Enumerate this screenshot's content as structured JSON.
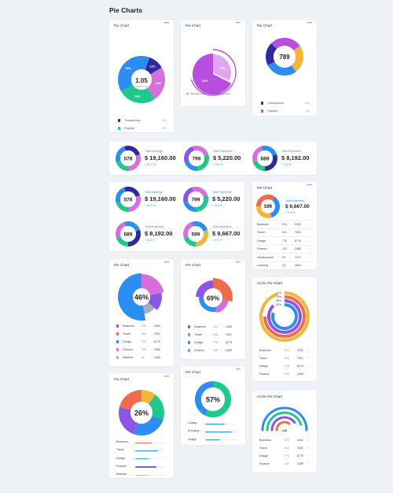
{
  "page_title": "Pie Charts",
  "card_title": "Pie Chart",
  "circle_card_title": "Circle Pie Chart",
  "colors": {
    "navy": "#2f2a9e",
    "green": "#1ec98b",
    "pink": "#d76ee0",
    "blue": "#2b8ef0",
    "purple": "#8b55e6",
    "orange": "#f5b53a",
    "red": "#f06a4c",
    "gray": "#a3adbb"
  },
  "card1": {
    "center_value": "1.05",
    "center_sub": "average range",
    "slices": [
      {
        "label": "11%",
        "value": 11,
        "color": "#2f2a9e"
      },
      {
        "label": "24%",
        "value": 24,
        "color": "#d76ee0"
      },
      {
        "label": "26%",
        "value": 26,
        "color": "#1ec98b"
      },
      {
        "label": "39%",
        "value": 39,
        "color": "#2b8ef0"
      }
    ],
    "legend": [
      {
        "name": "Transactions",
        "value": "400",
        "color": "#2f2a9e"
      },
      {
        "name": "Payouts",
        "value": "180",
        "color": "#1ec98b"
      },
      {
        "name": "Sales",
        "value": "240",
        "color": "#d76ee0"
      },
      {
        "name": "Reports",
        "value": "596",
        "color": "#2b8ef0"
      }
    ]
  },
  "card2": {
    "slices": [
      {
        "label": "82%",
        "value": 82,
        "color": "#b84ee0"
      },
      {
        "label": "18%",
        "value": 18,
        "color": "#e3a4f2"
      }
    ],
    "legend": [
      {
        "name": "Total Expenses",
        "color": "#d76ee0"
      },
      {
        "name": "Remaining Sales",
        "color": "#b84ee0"
      }
    ]
  },
  "card3": {
    "center_value": "789",
    "legend": [
      {
        "name": "Transactions",
        "value": "400",
        "color": "#2f2a9e"
      },
      {
        "name": "Payouts",
        "value": "780",
        "color": "#b84ee0"
      },
      {
        "name": "Sales",
        "value": "240",
        "color": "#f5b53a"
      },
      {
        "name": "Reports",
        "value": "596",
        "color": "#2b8ef0"
      }
    ]
  },
  "stats": [
    {
      "center": "578",
      "label": "Total Earnings",
      "amount": "$ 19,160.00",
      "change": "+ 16.24 %"
    },
    {
      "center": "799",
      "label": "Total Payments",
      "amount": "$ 5,220.00",
      "change": "+ 6.64 %"
    },
    {
      "center": "689",
      "label": "Total Expenses",
      "amount": "$ 8,192.00",
      "change": "+ 5.12 %"
    },
    {
      "center": "599",
      "label": "Total Expenses",
      "amount": "$ 9,667.00",
      "change": "+ 9.10 %"
    }
  ],
  "table": [
    {
      "name": "Business",
      "a": "224",
      "b": "2452"
    },
    {
      "name": "Travel",
      "a": "510",
      "b": "7631"
    },
    {
      "name": "Design",
      "a": "775",
      "b": "8779"
    },
    {
      "name": "Finance",
      "a": "120",
      "b": "2485"
    },
    {
      "name": "Development",
      "a": "20",
      "b": "1477"
    },
    {
      "name": "Learning",
      "a": "24",
      "b": "4052"
    }
  ],
  "card_46": {
    "center": "46%",
    "legend": [
      {
        "name": "Business",
        "a": "224",
        "b": "2453",
        "color": "#8b55e6"
      },
      {
        "name": "Travel",
        "a": "510",
        "b": "7631",
        "color": "#f06a4c"
      },
      {
        "name": "Design",
        "a": "775",
        "b": "8779",
        "color": "#2b8ef0"
      },
      {
        "name": "Finance",
        "a": "120",
        "b": "2485",
        "color": "#d76ee0"
      },
      {
        "name": "Material",
        "a": "62",
        "b": "1456",
        "color": "#a3adbb"
      }
    ]
  },
  "card_69": {
    "center": "69%",
    "legend": [
      {
        "name": "Business",
        "a": "224",
        "b": "2453",
        "color": "#8b55e6"
      },
      {
        "name": "Travel",
        "a": "510",
        "b": "7631",
        "color": "#f06a4c"
      },
      {
        "name": "Design",
        "a": "775",
        "b": "8779",
        "color": "#2b8ef0"
      },
      {
        "name": "Finance",
        "a": "120",
        "b": "2485",
        "color": "#d76ee0"
      }
    ]
  },
  "circle1": {
    "labels": [
      "41%",
      "76%",
      "88%",
      "82%"
    ],
    "rows": [
      {
        "name": "Business",
        "a": "224",
        "b": "2452"
      },
      {
        "name": "Travel",
        "a": "510",
        "b": "7631"
      },
      {
        "name": "Design",
        "a": "775",
        "b": "8779"
      },
      {
        "name": "Finance",
        "a": "120",
        "b": "2485"
      }
    ]
  },
  "card_26": {
    "center": "26%",
    "bars": [
      {
        "name": "Business",
        "pct": 0.55,
        "color": "#f06a4c"
      },
      {
        "name": "Travel",
        "pct": 0.75,
        "color": "#2b8ef0"
      },
      {
        "name": "Design",
        "pct": 0.45,
        "color": "#1ec98b"
      },
      {
        "name": "Finance",
        "pct": 0.7,
        "color": "#8b55e6"
      },
      {
        "name": "Material",
        "pct": 0.4,
        "color": "#f5b53a"
      }
    ]
  },
  "card_57": {
    "center": "57%",
    "bars": [
      {
        "name": "Coding",
        "pct": 0.6,
        "color": "#2b8ef0"
      },
      {
        "name": "Branding",
        "pct": 0.8,
        "color": "#2b8ef0"
      },
      {
        "name": "Design",
        "pct": 0.45,
        "color": "#2b8ef0"
      }
    ]
  },
  "circle2": {
    "center": "245",
    "rows": [
      {
        "name": "Business",
        "a": "224",
        "b": "2452"
      },
      {
        "name": "Travel",
        "a": "510",
        "b": "7631"
      },
      {
        "name": "Design",
        "a": "775",
        "b": "8779"
      },
      {
        "name": "Finance",
        "a": "120",
        "b": "2485"
      }
    ]
  }
}
